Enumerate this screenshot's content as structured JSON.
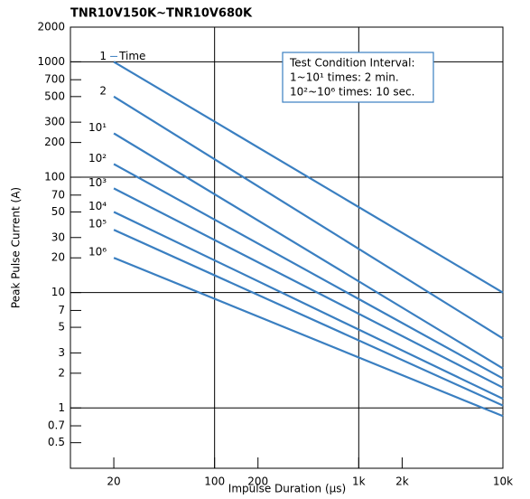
{
  "chart_data": {
    "type": "line",
    "title": "TNR10V150K~TNR10V680K",
    "x_label": "Impulse Duration (µs)",
    "y_label": "Peak Pulse Current (A)",
    "annotation": "Time",
    "note": [
      "Test Condition Interval:",
      "1~10¹ times: 2 min.",
      "10²~10⁶ times: 10 sec."
    ],
    "x": [
      20,
      10000
    ],
    "series": [
      {
        "name": "1",
        "color": "#3a7fc1",
        "values": [
          1000,
          10
        ]
      },
      {
        "name": "2",
        "color": "#3a7fc1",
        "values": [
          500,
          4
        ]
      },
      {
        "name": "10¹",
        "color": "#3a7fc1",
        "values": [
          240,
          2.2
        ]
      },
      {
        "name": "10²",
        "color": "#3a7fc1",
        "values": [
          130,
          1.8
        ]
      },
      {
        "name": "10³",
        "color": "#3a7fc1",
        "values": [
          80,
          1.5
        ]
      },
      {
        "name": "10⁴",
        "color": "#3a7fc1",
        "values": [
          50,
          1.2
        ]
      },
      {
        "name": "10⁵",
        "color": "#3a7fc1",
        "values": [
          35,
          1.05
        ]
      },
      {
        "name": "10⁶",
        "color": "#3a7fc1",
        "values": [
          20,
          0.85
        ]
      }
    ],
    "xscale": "log",
    "yscale": "log",
    "xlim": [
      10,
      10000
    ],
    "ylim": [
      0.3,
      2000
    ],
    "xticks": [
      20,
      100,
      200,
      {
        "value": 1000,
        "label": "1k"
      },
      {
        "value": 2000,
        "label": "2k"
      },
      {
        "value": 10000,
        "label": "10k"
      }
    ],
    "yticks": [
      0.5,
      0.7,
      1,
      2,
      3,
      5,
      7,
      10,
      20,
      30,
      50,
      70,
      100,
      200,
      300,
      500,
      700,
      1000,
      2000
    ],
    "xgrid": [
      100,
      1000
    ],
    "ygrid": [
      1,
      10,
      100,
      1000
    ]
  }
}
